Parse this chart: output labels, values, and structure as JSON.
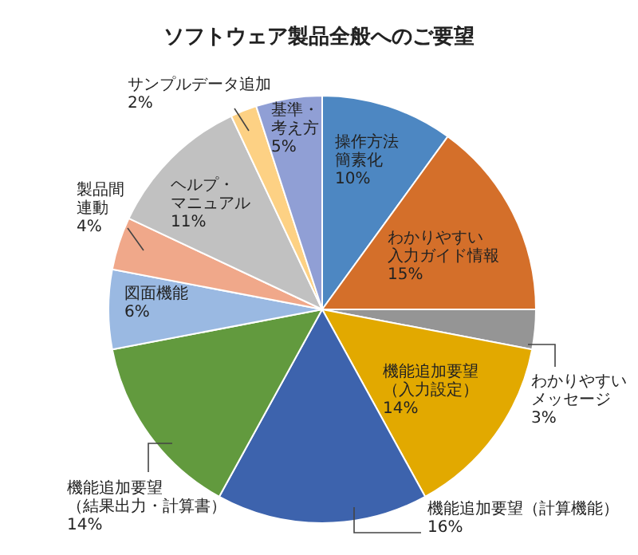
{
  "chart_data": {
    "type": "pie",
    "title": "ソフトウェア製品全般へのご要望",
    "categories": [
      "操作方法簡素化",
      "わかりやすい入力ガイド情報",
      "わかりやすいメッセージ",
      "機能追加要望（入力設定）",
      "機能追加要望（計算機能）",
      "機能追加要望（結果出力・計算書）",
      "図面機能",
      "製品間連動",
      "ヘルプ・マニュアル",
      "サンプルデータ追加",
      "基準・考え方"
    ],
    "values": [
      10,
      15,
      3,
      14,
      16,
      14,
      6,
      4,
      11,
      2,
      5
    ],
    "value_labels": [
      "10%",
      "15%",
      "3%",
      "14%",
      "16%",
      "14%",
      "6%",
      "4%",
      "11%",
      "2%",
      "5%"
    ],
    "colors": [
      "#4d87c2",
      "#d46f2a",
      "#959595",
      "#e2a900",
      "#3d63ad",
      "#629a3e",
      "#9ab9e2",
      "#f0a88a",
      "#c1c1c1",
      "#fdd184",
      "#909fd5"
    ]
  }
}
